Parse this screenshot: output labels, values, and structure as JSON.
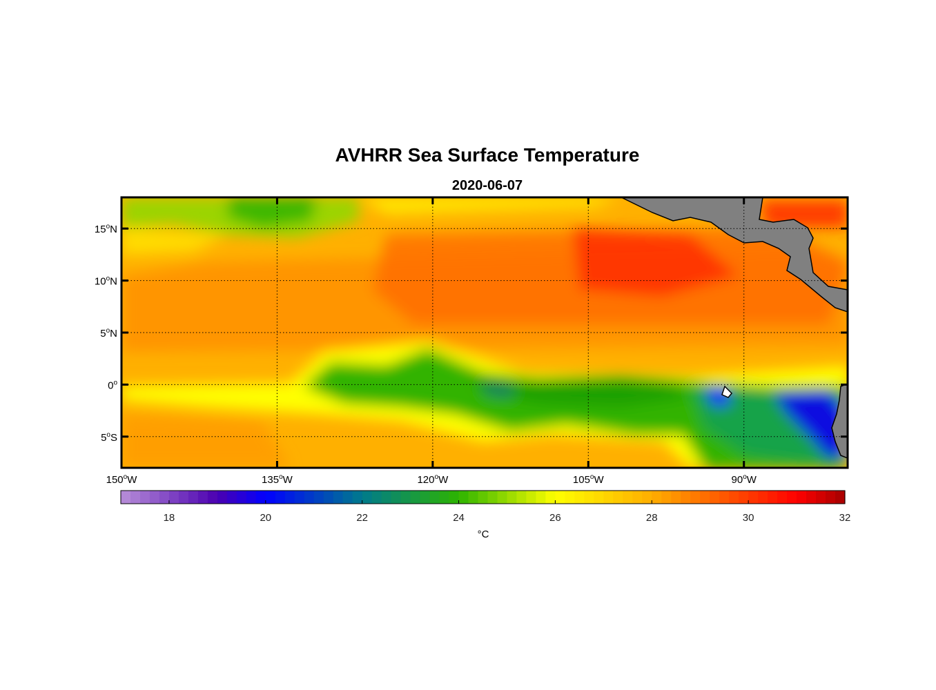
{
  "map": {
    "title": "AVHRR Sea Surface Temperature",
    "subtitle": "2020-06-07",
    "projection": "equirectangular",
    "lon_range": [
      -150,
      -80
    ],
    "lat_range": [
      -8,
      18
    ],
    "lon_ticks": [
      {
        "value": -150,
        "deg": "150",
        "hemi": "W"
      },
      {
        "value": -135,
        "deg": "135",
        "hemi": "W"
      },
      {
        "value": -120,
        "deg": "120",
        "hemi": "W"
      },
      {
        "value": -105,
        "deg": "105",
        "hemi": "W"
      },
      {
        "value": -90,
        "deg": "90",
        "hemi": "W"
      }
    ],
    "lat_ticks": [
      {
        "value": 15,
        "deg": "15",
        "hemi": "N"
      },
      {
        "value": 10,
        "deg": "10",
        "hemi": "N"
      },
      {
        "value": 5,
        "deg": "5",
        "hemi": "N"
      },
      {
        "value": 0,
        "deg": "0",
        "hemi": ""
      },
      {
        "value": -5,
        "deg": "5",
        "hemi": "S"
      }
    ],
    "land_color": "#808080",
    "coast_color": "#000000",
    "grid": "dotted"
  },
  "colorbar": {
    "label": "°C",
    "range": [
      17,
      32
    ],
    "ticks": [
      "18",
      "20",
      "22",
      "24",
      "26",
      "28",
      "30",
      "32"
    ],
    "stops": [
      {
        "t": 17,
        "color": "#b88fd8"
      },
      {
        "t": 19,
        "color": "#4b00b0"
      },
      {
        "t": 20,
        "color": "#0000ff"
      },
      {
        "t": 22,
        "color": "#007a8c"
      },
      {
        "t": 24,
        "color": "#2db400"
      },
      {
        "t": 26,
        "color": "#ffff00"
      },
      {
        "t": 28,
        "color": "#ffae00"
      },
      {
        "t": 31,
        "color": "#ff0000"
      },
      {
        "t": 32,
        "color": "#a50000"
      }
    ]
  }
}
